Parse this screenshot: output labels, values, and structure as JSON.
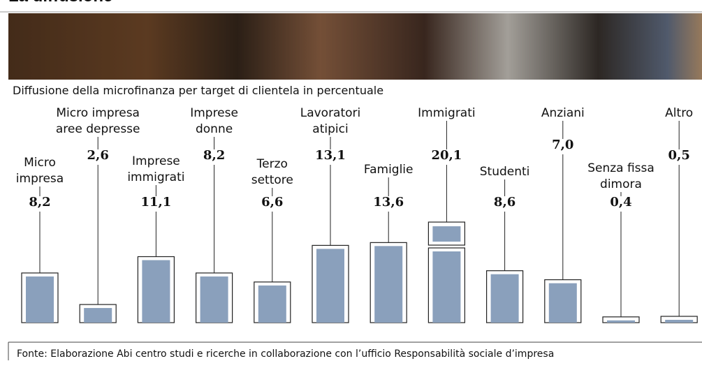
{
  "chart_data": {
    "type": "bar",
    "title": "La diffusione",
    "subtitle": "Diffusione della microfinanza per target di clientela in percentuale",
    "categories": [
      "Micro\nimpresa",
      "Micro impresa\naree depresse",
      "Imprese\nimmigrati",
      "Imprese\ndonne",
      "Terzo\nsettore",
      "Lavoratori\natipici",
      "Famiglie",
      "Immigrati",
      "Studenti",
      "Anziani",
      "Senza fissa\ndimora",
      "Altro"
    ],
    "values": [
      8.2,
      2.6,
      11.1,
      8.2,
      6.6,
      13.1,
      13.6,
      20.1,
      8.6,
      7.0,
      0.4,
      0.5
    ],
    "value_labels": [
      "8,2",
      "2,6",
      "11,1",
      "8,2",
      "6,6",
      "13,1",
      "13,6",
      "20,1",
      "8,6",
      "7,0",
      "0,4",
      "0,5"
    ],
    "color": "#8aa0bc",
    "ylim": [
      0,
      16
    ],
    "source": "Fonte: Elaborazione Abi centro studi e ricerche in collaborazione con l’ufficio Responsabilità sociale d’impresa"
  }
}
